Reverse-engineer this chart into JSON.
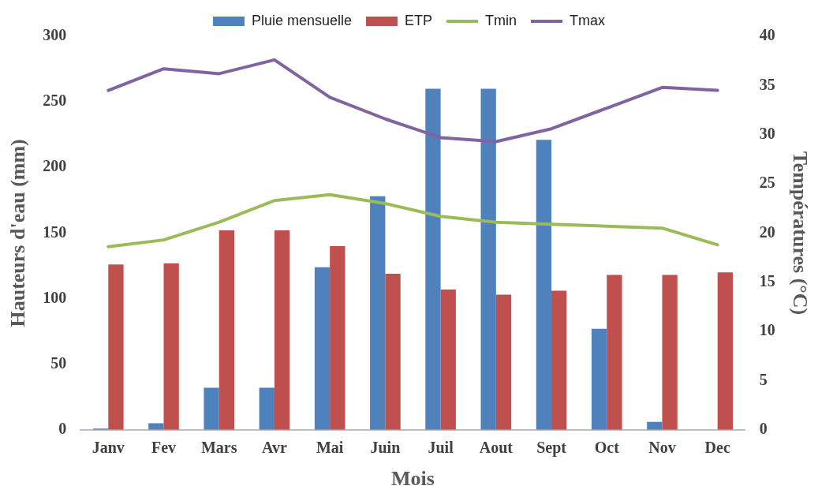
{
  "chart_data": {
    "type": "bar",
    "xlabel": "Mois",
    "ylabel": "Hauteurs d'eau (mm)",
    "y2label": "Températures (°C)",
    "categories": [
      "Janv",
      "Fev",
      "Mars",
      "Avr",
      "Mai",
      "Juin",
      "Juil",
      "Aout",
      "Sept",
      "Oct",
      "Nov",
      "Dec"
    ],
    "series": [
      {
        "name": "Pluie mensuelle",
        "color": "#4f81bd",
        "values": [
          1,
          5,
          32,
          32,
          124,
          178,
          260,
          260,
          221,
          77,
          6,
          0
        ]
      },
      {
        "name": "ETP",
        "color": "#c0504d",
        "values": [
          126,
          127,
          152,
          152,
          140,
          119,
          107,
          103,
          106,
          118,
          118,
          120
        ]
      },
      {
        "name": "Tmin",
        "type": "line",
        "axis": "y2",
        "color": "#9bbb59",
        "values": [
          18.6,
          19.3,
          21.1,
          23.3,
          23.9,
          23.0,
          21.7,
          21.1,
          20.9,
          20.7,
          20.5,
          18.8
        ]
      },
      {
        "name": "Tmax",
        "type": "line",
        "axis": "y2",
        "color": "#8064a2",
        "values": [
          34.5,
          36.7,
          36.2,
          37.6,
          33.8,
          31.6,
          29.7,
          29.3,
          30.6,
          32.7,
          34.8,
          34.5
        ]
      }
    ],
    "ylim": [
      0,
      300
    ],
    "yticks": [
      0,
      50,
      100,
      150,
      200,
      250,
      300
    ],
    "y2lim": [
      0,
      40
    ],
    "y2ticks": [
      0,
      5,
      10,
      15,
      20,
      25,
      30,
      35,
      40
    ],
    "legend": "top",
    "grid": false,
    "marker": "none",
    "line_style": "solid"
  }
}
